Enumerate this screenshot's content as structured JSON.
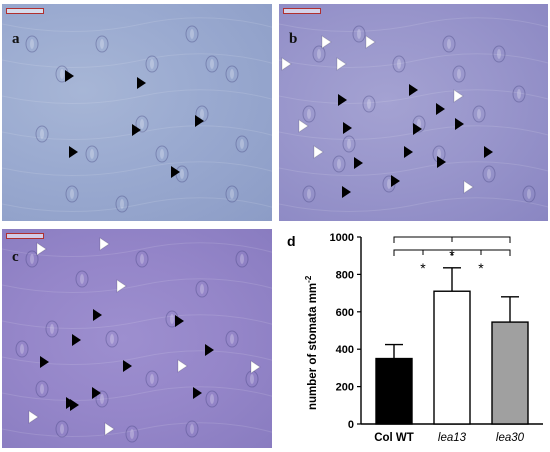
{
  "panels": [
    {
      "id": "a",
      "label": "a",
      "background_color": "#9aaad0",
      "black_arrows": 7,
      "white_arrows": 0
    },
    {
      "id": "b",
      "label": "b",
      "background_color": "#9895cb",
      "black_arrows": 14,
      "white_arrows": 8
    },
    {
      "id": "c",
      "label": "c",
      "background_color": "#9586c9",
      "black_arrows": 11,
      "white_arrows": 8
    }
  ],
  "chart_data": {
    "type": "bar",
    "panel_label": "d",
    "ylabel": "number of stomata mm",
    "ylabel_superscript": "-2",
    "ylim": [
      0,
      1000
    ],
    "yticks": [
      0,
      200,
      400,
      600,
      800,
      1000
    ],
    "categories": [
      "Col WT",
      "lea13",
      "lea30"
    ],
    "category_italic": [
      false,
      true,
      true
    ],
    "values": [
      350,
      710,
      545
    ],
    "errors": [
      75,
      125,
      135
    ],
    "colors": [
      "#000000",
      "#ffffff",
      "#a0a0a0"
    ],
    "significance": [
      {
        "from": 0,
        "to": 1,
        "label": "*"
      },
      {
        "from": 1,
        "to": 2,
        "label": "*"
      },
      {
        "from": 0,
        "to": 2,
        "label": "*"
      }
    ]
  }
}
